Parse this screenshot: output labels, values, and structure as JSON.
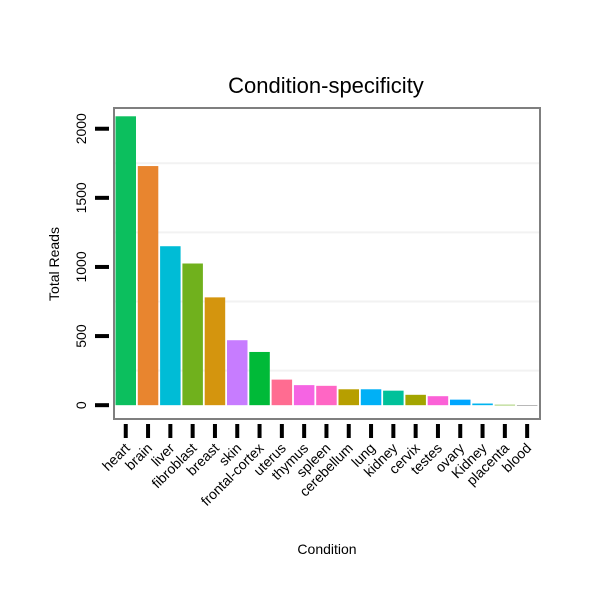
{
  "chart_data": {
    "type": "bar",
    "title": "Condition-specificity",
    "xlabel": "Condition",
    "ylabel": "Total Reads",
    "ylim": [
      -100,
      2150
    ],
    "yticks": [
      0,
      500,
      1000,
      1500,
      2000
    ],
    "grid": true,
    "categories": [
      "heart",
      "brain",
      "liver",
      "fibroblast",
      "breast",
      "skin",
      "frontal-cortex",
      "uterus",
      "thymus",
      "spleen",
      "cerebellum",
      "lung",
      "kidney",
      "cervix",
      "testes",
      "ovary",
      "Kidney",
      "placenta",
      "blood"
    ],
    "values": [
      2090,
      1730,
      1150,
      1025,
      780,
      470,
      385,
      185,
      145,
      140,
      115,
      115,
      105,
      75,
      65,
      40,
      12,
      3,
      1
    ],
    "colors": [
      "#0cbf5e",
      "#e8852f",
      "#00bcd6",
      "#70b11d",
      "#d4950e",
      "#c77cff",
      "#00ba38",
      "#ff6c91",
      "#f564e3",
      "#ff66c4",
      "#b79f00",
      "#00b0f6",
      "#00c19a",
      "#a3a500",
      "#fb61d7",
      "#00a6ff",
      "#00b4ef",
      "#6fae1a",
      "#8a8a8a"
    ]
  }
}
